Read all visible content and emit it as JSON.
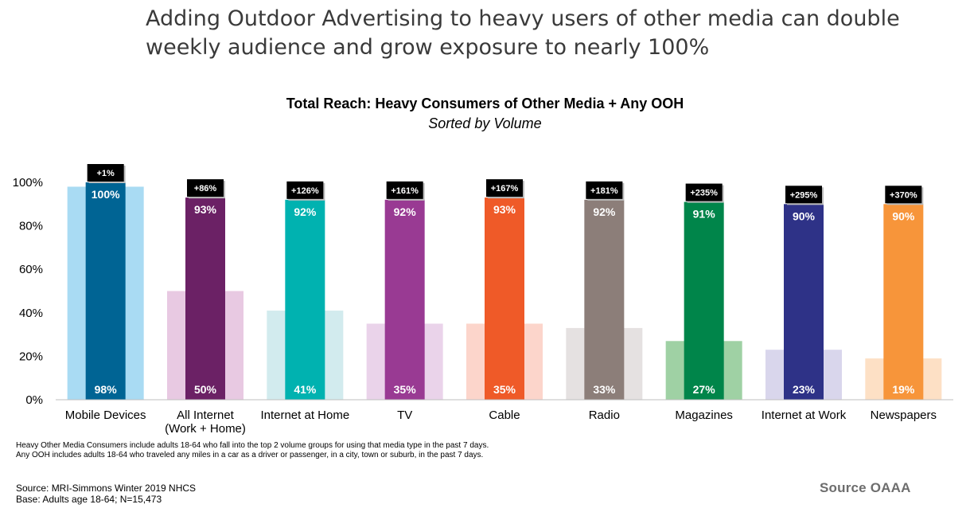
{
  "headline": {
    "line1": "Adding Outdoor Advertising to heavy users of other media can double",
    "line2": "weekly audience and grow exposure to nearly 100%"
  },
  "chart_data": {
    "type": "bar",
    "title": "Total Reach: Heavy Consumers of Other Media + Any OOH",
    "subtitle": "Sorted by Volume",
    "ylim": [
      0,
      100
    ],
    "yticks": [
      "0%",
      "20%",
      "40%",
      "60%",
      "80%",
      "100%"
    ],
    "categories": [
      [
        "Mobile Devices"
      ],
      [
        "All Internet",
        "(Work + Home)"
      ],
      [
        "Internet at Home"
      ],
      [
        "TV"
      ],
      [
        "Cable"
      ],
      [
        "Radio"
      ],
      [
        "Magazines"
      ],
      [
        "Internet at Work"
      ],
      [
        "Newspapers"
      ]
    ],
    "series": [
      {
        "name": "Heavy Consumers of Other Media",
        "values": [
          98,
          50,
          41,
          35,
          35,
          33,
          27,
          23,
          19
        ],
        "labels": [
          "98%",
          "50%",
          "41%",
          "35%",
          "35%",
          "33%",
          "27%",
          "23%",
          "19%"
        ]
      },
      {
        "name": "Heavy Consumers of Other Media + Any OOH",
        "values": [
          100,
          93,
          92,
          92,
          93,
          92,
          91,
          90,
          90
        ],
        "labels": [
          "100%",
          "93%",
          "92%",
          "92%",
          "93%",
          "92%",
          "91%",
          "90%",
          "90%"
        ]
      }
    ],
    "lift_labels": [
      "+1%",
      "+86%",
      "+126%",
      "+161%",
      "+167%",
      "+181%",
      "+235%",
      "+295%",
      "+370%"
    ],
    "colors": {
      "dark": [
        "#006494",
        "#6b2165",
        "#00b2b0",
        "#993a93",
        "#ef5a28",
        "#8c7e79",
        "#00854a",
        "#2e3287",
        "#f7953a"
      ],
      "light": [
        "#a9dbf3",
        "#e8c9e2",
        "#d2ebee",
        "#ead3ea",
        "#fcd5cb",
        "#e5e1e1",
        "#9fd1a4",
        "#d9d6ec",
        "#fde0c5"
      ]
    }
  },
  "notes": {
    "line1": "Heavy Other Media Consumers include adults 18-64 who fall into the top 2 volume groups for using that media type in the past 7 days.",
    "line2": "Any OOH includes adults 18-64 who traveled any miles in a car as a driver or passenger, in a city, town or suburb, in the past 7 days."
  },
  "source": {
    "line1": "Source: MRI-Simmons Winter 2019 NHCS",
    "line2": "Base: Adults age 18-64; N=15,473"
  },
  "brand": "Source OAAA"
}
